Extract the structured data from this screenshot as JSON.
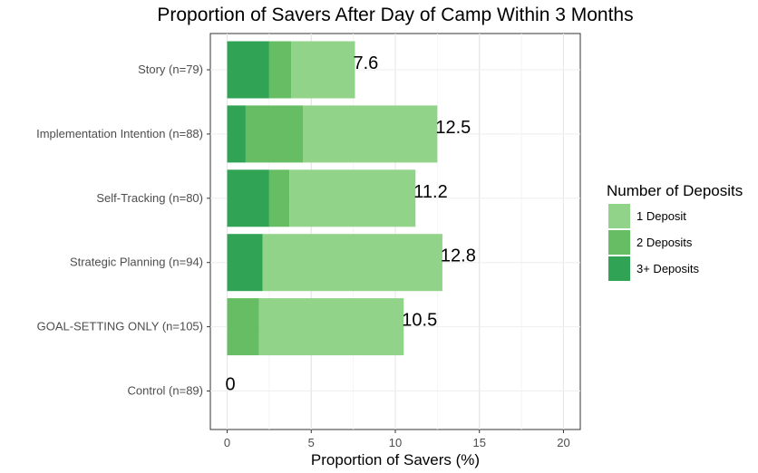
{
  "chart_data": {
    "type": "bar",
    "orientation": "horizontal",
    "stacked": true,
    "title": "Proportion of Savers After Day of Camp Within 3 Months",
    "xlabel": "Proportion of Savers (%)",
    "ylabel": "",
    "xlim": [
      -1,
      21
    ],
    "xticks": [
      0,
      5,
      10,
      15,
      20
    ],
    "grid": true,
    "categories": [
      "Story (n=79)",
      "Implementation Intention (n=88)",
      "Self-Tracking (n=80)",
      "Strategic Planning (n=94)",
      "GOAL-SETTING ONLY (n=105)",
      "Control (n=89)"
    ],
    "series": [
      {
        "name": "3+ Deposits",
        "color": "#31a354",
        "values": [
          2.5,
          1.1,
          2.5,
          2.1,
          0,
          0
        ]
      },
      {
        "name": "2 Deposits",
        "color": "#66bd63",
        "values": [
          1.3,
          3.4,
          1.2,
          0,
          1.9,
          0
        ]
      },
      {
        "name": "1 Deposit",
        "color": "#92d38a",
        "values": [
          3.8,
          8.0,
          7.5,
          10.7,
          8.6,
          0
        ]
      }
    ],
    "totals": [
      7.6,
      12.5,
      11.2,
      12.8,
      10.5,
      0
    ],
    "total_labels": [
      "7.6",
      "12.5",
      "11.2",
      "12.8",
      "10.5",
      "0"
    ],
    "legend": {
      "title": "Number of Deposits",
      "position": "right",
      "entries": [
        "1 Deposit",
        "2 Deposits",
        "3+ Deposits"
      ],
      "colors": [
        "#92d38a",
        "#66bd63",
        "#31a354"
      ]
    }
  }
}
